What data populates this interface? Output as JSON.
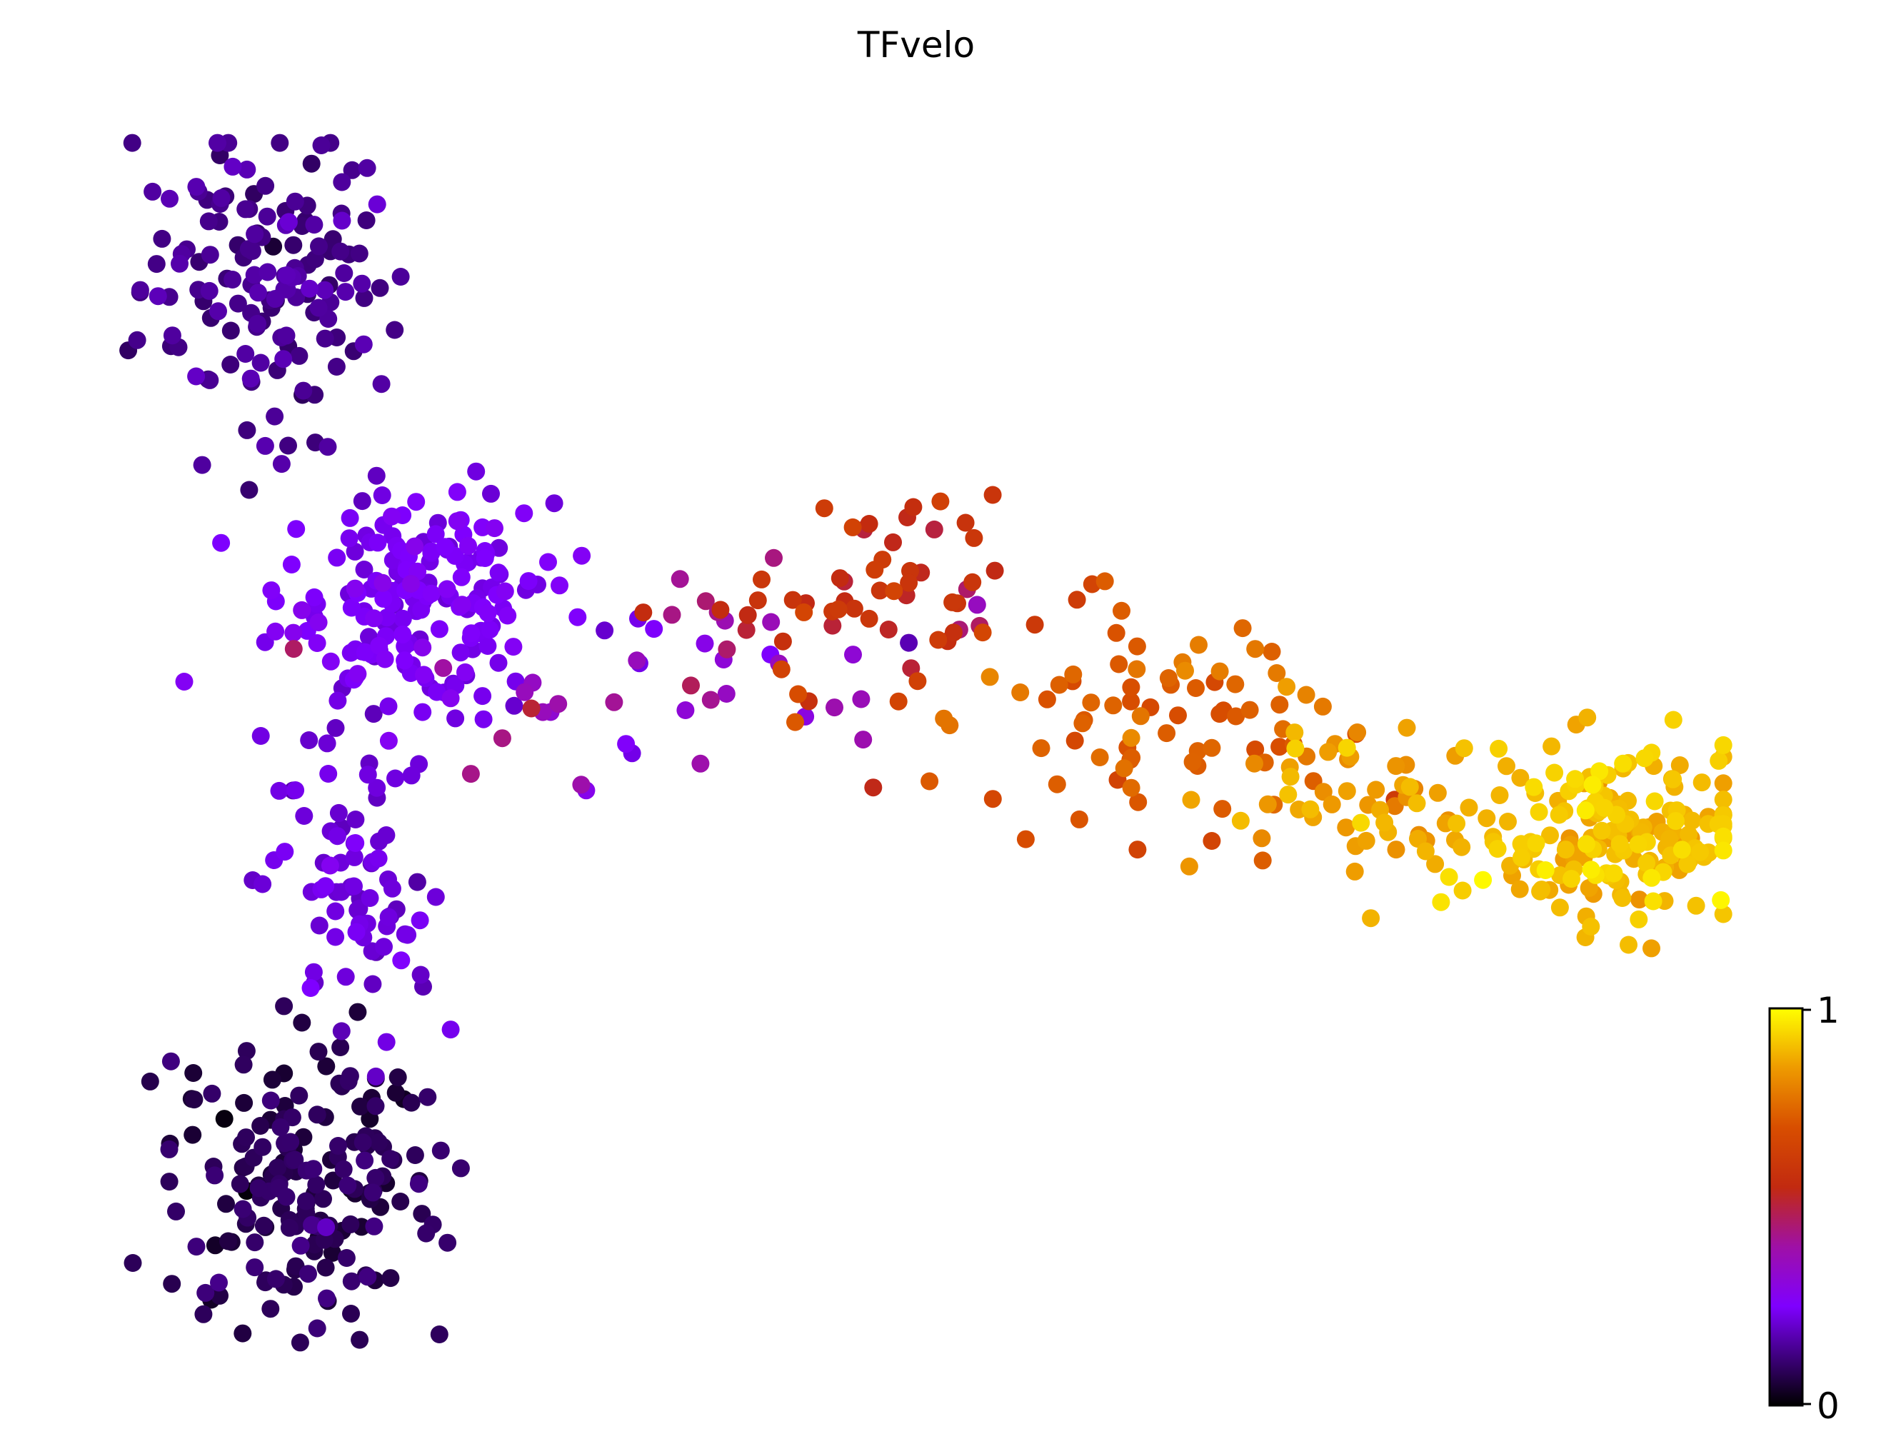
{
  "chart_data": {
    "type": "scatter",
    "title": "TFvelo",
    "xlabel": "",
    "ylabel": "",
    "axes_visible": false,
    "grid": false,
    "legend": "none",
    "colormap": "gnuplot",
    "colorbar": {
      "position": "right-bottom",
      "min": 0,
      "max": 1,
      "tick_labels": [
        "0",
        "1"
      ],
      "stops": [
        {
          "t": 0.0,
          "color": "#000000"
        },
        {
          "t": 0.25,
          "color": "#7f00ff"
        },
        {
          "t": 0.4,
          "color": "#9f10a6"
        },
        {
          "t": 0.55,
          "color": "#c22a10"
        },
        {
          "t": 0.7,
          "color": "#d84e00"
        },
        {
          "t": 0.85,
          "color": "#ee9a00"
        },
        {
          "t": 1.0,
          "color": "#ffff00"
        }
      ]
    },
    "xlim": [
      0,
      100
    ],
    "ylim": [
      0,
      100
    ],
    "clusters": [
      {
        "name": "",
        "cx": 10,
        "cy": 88,
        "sx": 4.0,
        "sy": 6.5,
        "n": 150,
        "c": 0.14,
        "cs": 0.025
      },
      {
        "name": "",
        "cx": 19,
        "cy": 62,
        "sx": 4.2,
        "sy": 4.5,
        "n": 190,
        "c": 0.24,
        "cs": 0.02
      },
      {
        "name": "",
        "cx": 15,
        "cy": 38,
        "sx": 2.6,
        "sy": 7.0,
        "n": 80,
        "c": 0.21,
        "cs": 0.02
      },
      {
        "name": "",
        "cx": 12,
        "cy": 14,
        "sx": 4.2,
        "sy": 6.0,
        "n": 190,
        "c": 0.08,
        "cs": 0.025
      },
      {
        "name": "",
        "cx": 34,
        "cy": 56,
        "sx": 7.5,
        "sy": 4.5,
        "n": 45,
        "c": 0.36,
        "cs": 0.07
      },
      {
        "name": "",
        "cx": 50,
        "cy": 62,
        "sx": 6.0,
        "sy": 5.0,
        "n": 60,
        "c": 0.58,
        "cs": 0.05
      },
      {
        "name": "",
        "cx": 65,
        "cy": 51,
        "sx": 6.0,
        "sy": 4.5,
        "n": 80,
        "c": 0.74,
        "cs": 0.04
      },
      {
        "name": "",
        "cx": 78,
        "cy": 45,
        "sx": 4.5,
        "sy": 4.0,
        "n": 55,
        "c": 0.86,
        "cs": 0.03
      },
      {
        "name": "",
        "cx": 93,
        "cy": 42,
        "sx": 4.2,
        "sy": 3.4,
        "n": 190,
        "c": 0.9,
        "cs": 0.035
      }
    ]
  }
}
